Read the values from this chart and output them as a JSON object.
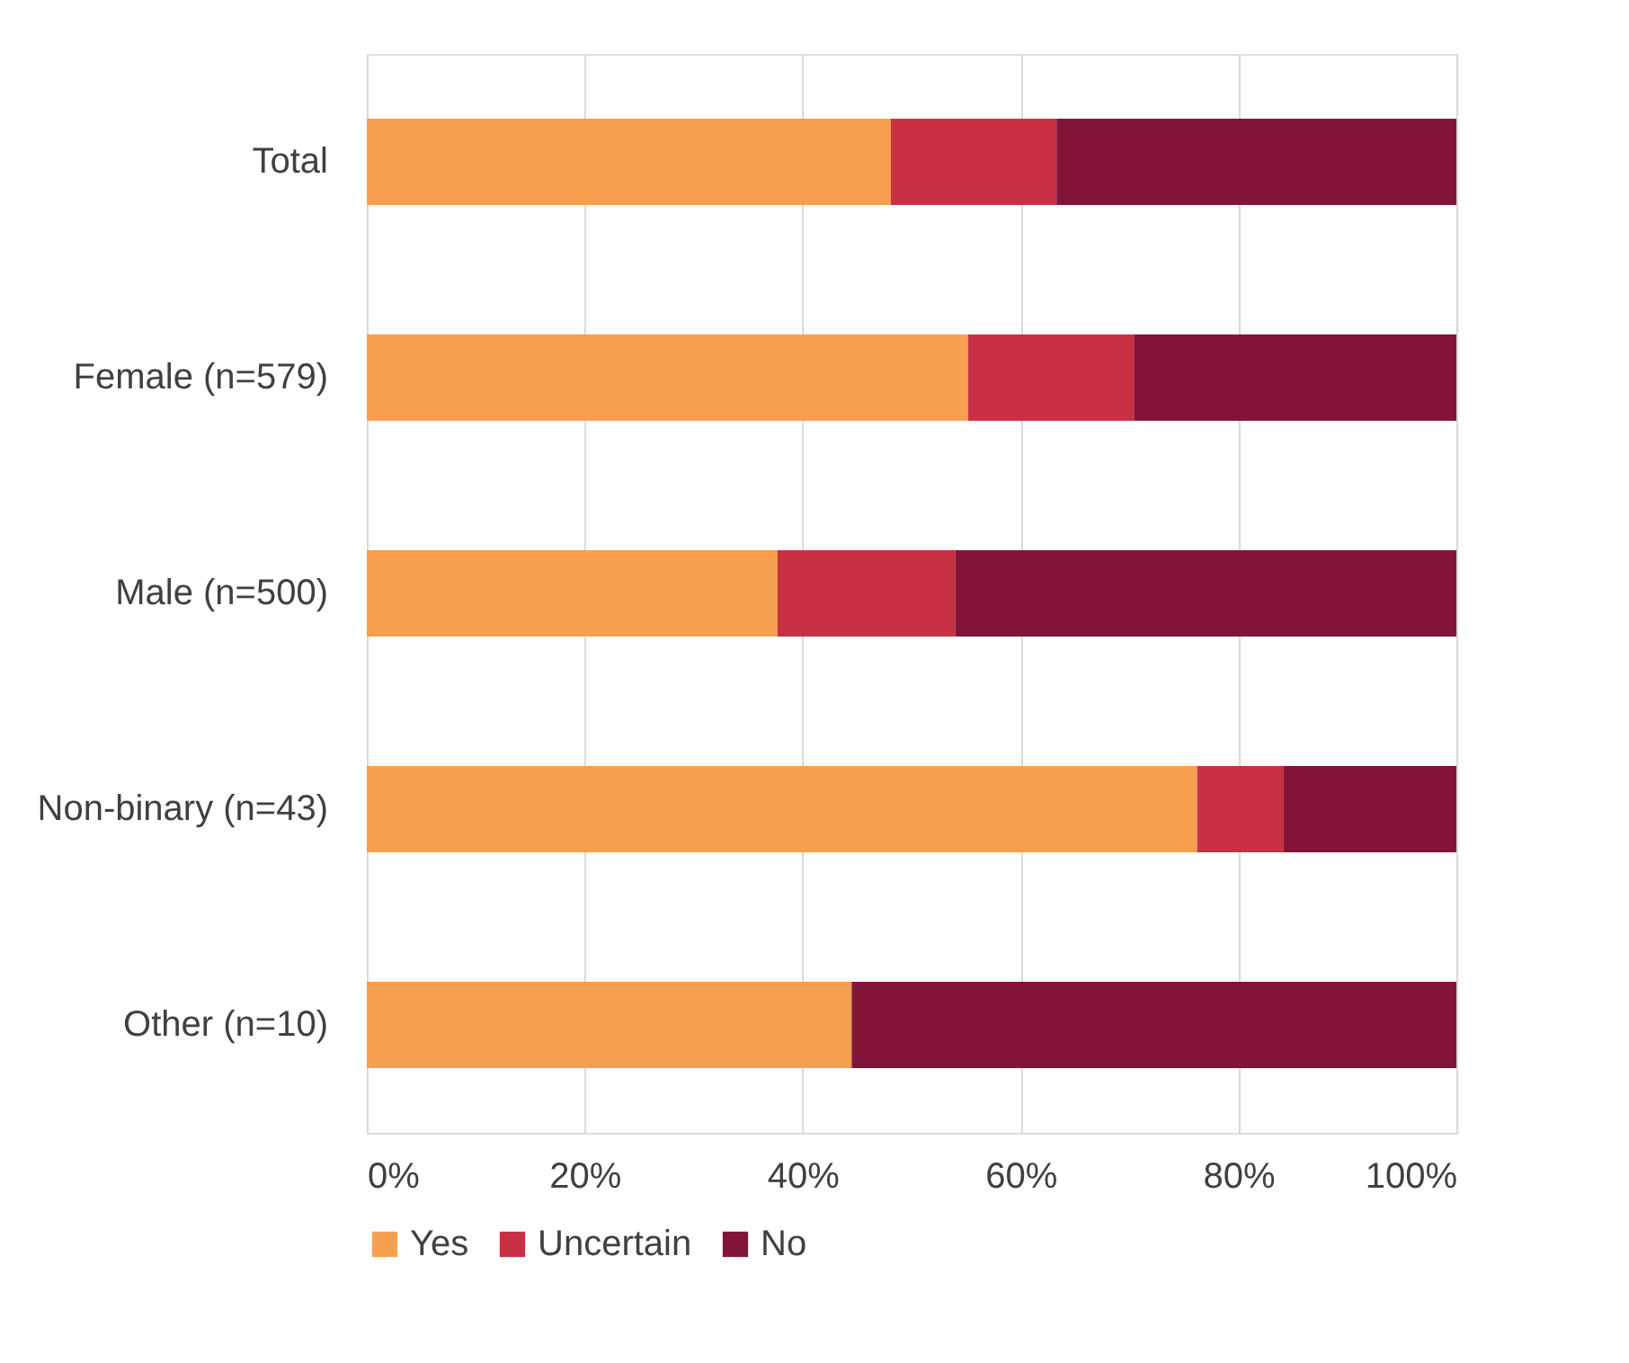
{
  "chart_data": {
    "type": "bar",
    "orientation": "horizontal",
    "stacked": true,
    "categories": [
      "Total",
      "Female (n=579)",
      "Male (n=500)",
      "Non-binary (n=43)",
      "Other (n=10)"
    ],
    "series": [
      {
        "name": "Yes",
        "color": "#f59f4f",
        "values": [
          48.1,
          55.2,
          37.7,
          76.2,
          44.5
        ]
      },
      {
        "name": "Uncertain",
        "color": "#c83044",
        "values": [
          15.2,
          15.2,
          16.3,
          7.9,
          0
        ]
      },
      {
        "name": "No",
        "color": "#821537",
        "values": [
          36.7,
          29.6,
          46.0,
          15.9,
          55.5
        ]
      }
    ],
    "xlim": [
      0,
      100
    ],
    "xticks": [
      {
        "value": 0,
        "label": "0%"
      },
      {
        "value": 20,
        "label": "20%"
      },
      {
        "value": 40,
        "label": "40%"
      },
      {
        "value": 60,
        "label": "60%"
      },
      {
        "value": 80,
        "label": "80%"
      },
      {
        "value": 100,
        "label": "100%"
      }
    ],
    "grid": "x",
    "legend": "bottom"
  }
}
